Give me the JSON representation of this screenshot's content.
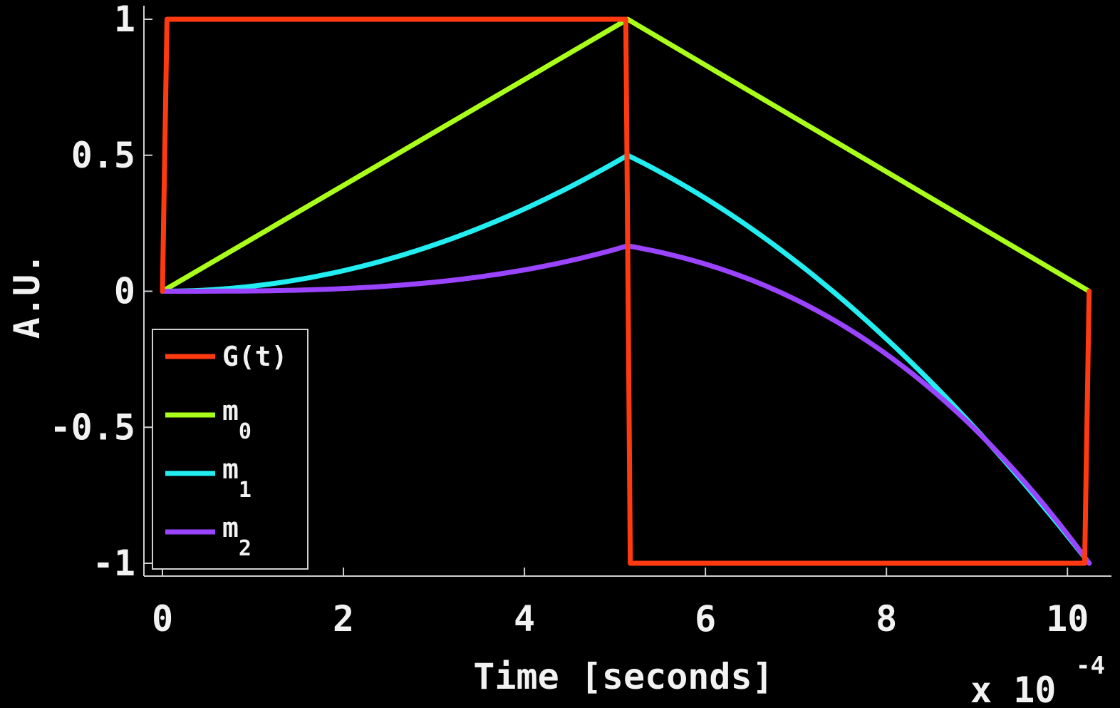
{
  "chart_data": {
    "type": "line",
    "xlabel": "Time [seconds]",
    "ylabel": "A.U.",
    "x_multiplier": "x 10",
    "x_multiplier_exp": "-4",
    "xlim": [
      0,
      10.25
    ],
    "ylim": [
      -1,
      1
    ],
    "x_ticks": [
      0,
      2,
      4,
      6,
      8,
      10
    ],
    "x_tick_labels": [
      "0",
      "2",
      "4",
      "6",
      "8",
      "10"
    ],
    "y_ticks": [
      1,
      0.5,
      0,
      -0.5,
      -1
    ],
    "y_tick_labels": [
      "1",
      "0.5",
      "0",
      "-0.5",
      "-1"
    ],
    "grid": false,
    "legend_position": "bottom-left",
    "series": [
      {
        "name": "G(t)",
        "name_main": "G(t)",
        "name_sub": "",
        "color": "#ff3a10",
        "shape": "trapezoid",
        "x": [
          0,
          0.05,
          5.12,
          5.17,
          10.19,
          10.24
        ],
        "values": [
          0,
          1,
          1,
          -1,
          -1,
          0
        ]
      },
      {
        "name": "m0",
        "name_main": "m",
        "name_sub": "0",
        "color": "#aaff1a",
        "shape": "trapezoid",
        "x": [
          0,
          5.14,
          10.24
        ],
        "values": [
          0,
          1,
          0
        ]
      },
      {
        "name": "m1",
        "name_main": "m",
        "name_sub": "1",
        "color": "#22eef2",
        "shape": "m1",
        "x": [
          0,
          5.14,
          10.24
        ],
        "values": [
          0,
          0.5,
          -1
        ]
      },
      {
        "name": "m2",
        "name_main": "m",
        "name_sub": "2",
        "color": "#9a44ff",
        "shape": "m2",
        "x": [
          0,
          5.14,
          10.24
        ],
        "values": [
          0,
          0.167,
          -1
        ]
      }
    ]
  }
}
